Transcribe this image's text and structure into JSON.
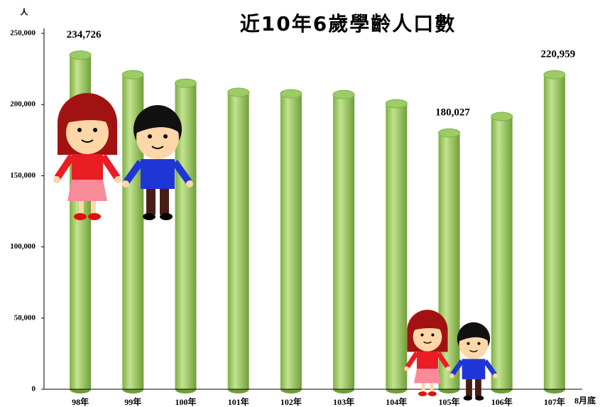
{
  "chart_data": {
    "type": "bar",
    "title": "近10年6歲學齡人口數",
    "y_label": "人",
    "x_note": "8月底",
    "categories": [
      "98年",
      "99年",
      "100年",
      "101年",
      "102年",
      "103年",
      "104年",
      "105年",
      "106年",
      "107年"
    ],
    "values": [
      234726,
      221000,
      215000,
      208600,
      207600,
      207000,
      200600,
      180027,
      191600,
      220959
    ],
    "value_labels": [
      "234,726",
      null,
      null,
      null,
      null,
      null,
      null,
      "180,027",
      null,
      "220,959"
    ],
    "color": "#9ccc65",
    "ylim": [
      0,
      250000
    ],
    "yticks": [
      0,
      {
        "value": 50000,
        "label": "50,000"
      },
      {
        "value": 100000,
        "label": "100,000"
      },
      {
        "value": 150000,
        "label": "150,000"
      },
      {
        "value": 200000,
        "label": "200,000"
      },
      {
        "value": 250000,
        "label": "250,000"
      }
    ]
  }
}
